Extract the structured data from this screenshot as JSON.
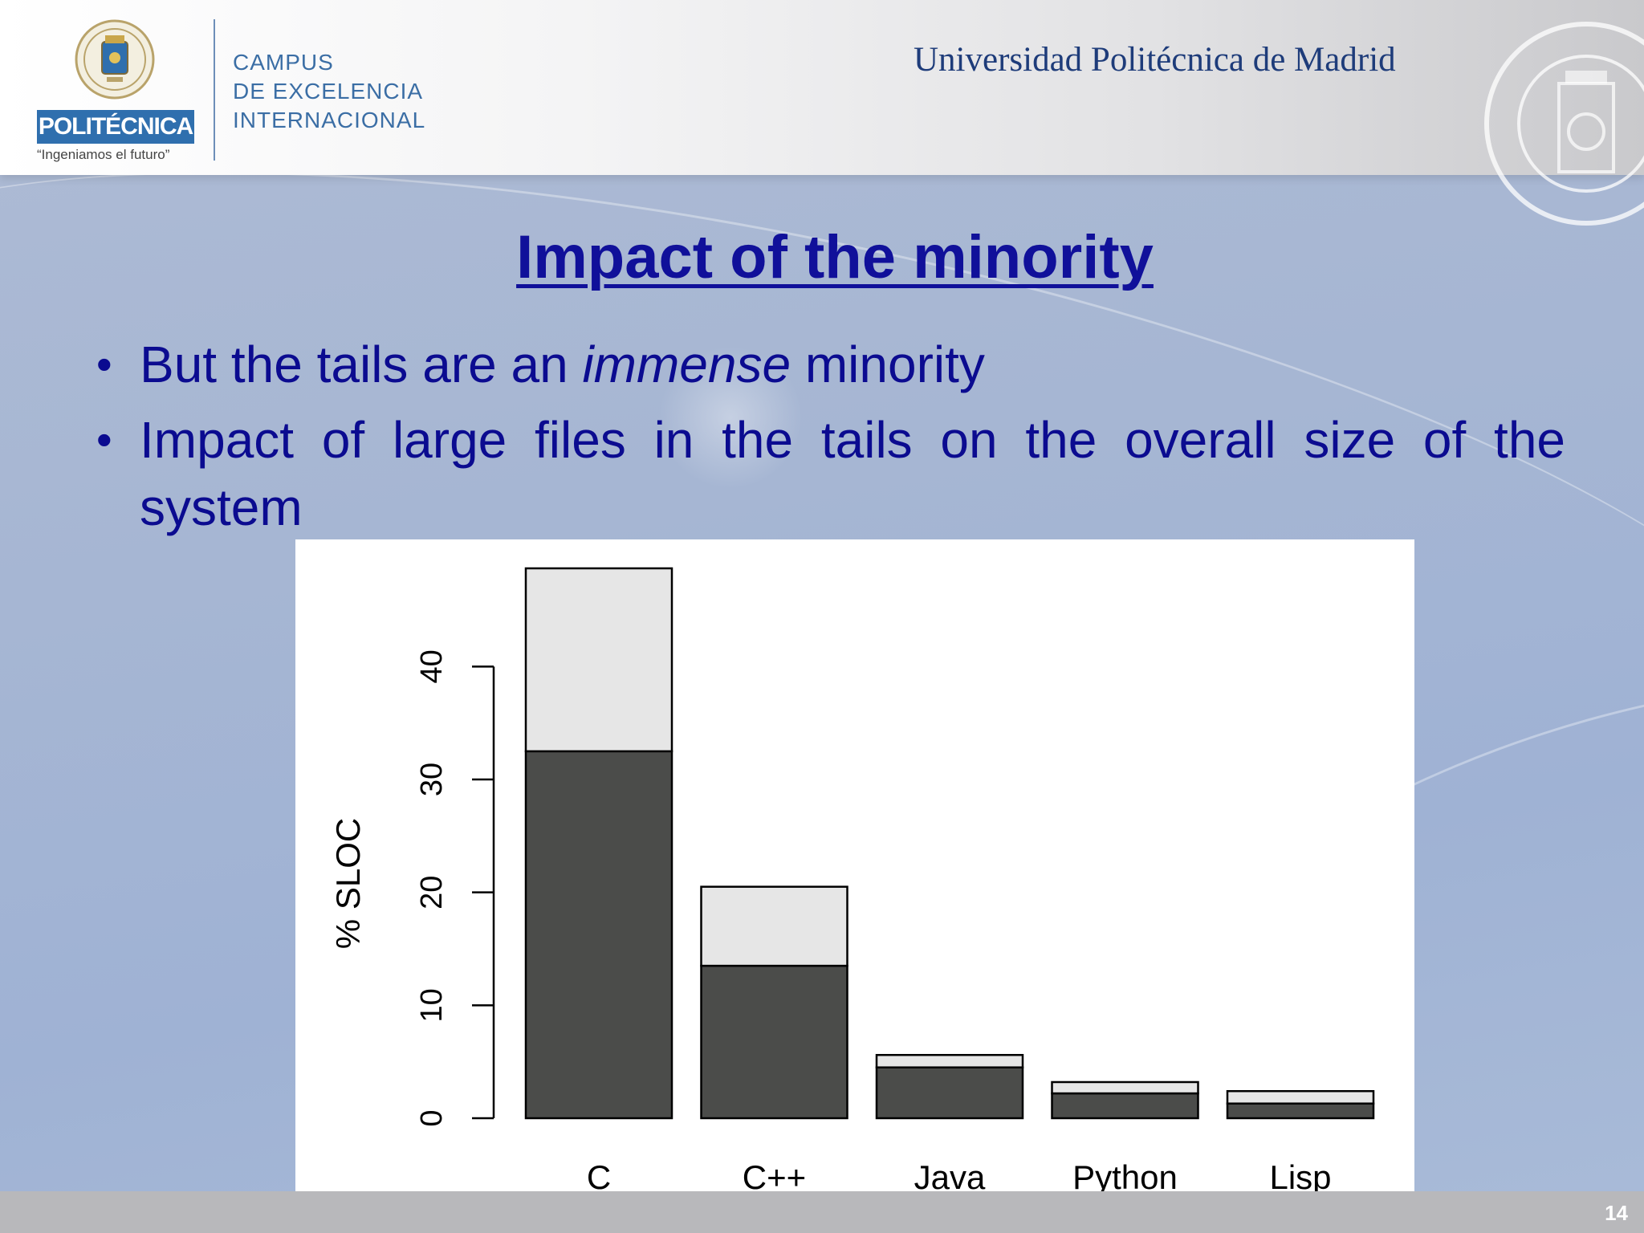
{
  "header": {
    "brand_badge": "POLITÉCNICA",
    "brand_tagline": "“Ingeniamos el futuro”",
    "campus_lines": [
      "CAMPUS",
      "DE EXCELENCIA",
      "INTERNACIONAL"
    ],
    "university_name": "Universidad Politécnica de Madrid",
    "emblem_icon": "upm-emblem-icon",
    "seal_icon": "university-seal-icon",
    "colors": {
      "badge": "#2f6fae",
      "campus_text": "#3b6ea5",
      "university_name": "#1e3c7a"
    }
  },
  "slide": {
    "title": "Impact of the minority",
    "bullets": [
      {
        "before": "But the tails are an ",
        "emphasis": "immense",
        "after": " minority"
      },
      {
        "line1_words": [
          "Impact",
          "of",
          "large",
          "files",
          "in",
          "the",
          "tails",
          "on",
          "the",
          "overall",
          "size",
          "of",
          "the"
        ],
        "line2": "system"
      }
    ],
    "page_number": "14",
    "colors": {
      "title": "#10109a",
      "body_text": "#0b0b90"
    }
  },
  "chart_data": {
    "type": "bar",
    "stacked": true,
    "categories": [
      "C",
      "C++",
      "Java",
      "Python",
      "Lisp"
    ],
    "series": [
      {
        "values": [
          32.5,
          13.5,
          4.5,
          2.2,
          1.3
        ],
        "color": "#4b4c4a"
      },
      {
        "values": [
          16.2,
          7.0,
          1.1,
          1.0,
          1.1
        ],
        "color": "#e6e6e6"
      }
    ],
    "ylabel": "% SLOC",
    "xlabel": "",
    "yticks": [
      0,
      10,
      20,
      30,
      40
    ],
    "ylim": [
      0,
      48.7
    ],
    "legend": "none",
    "grid": false
  }
}
